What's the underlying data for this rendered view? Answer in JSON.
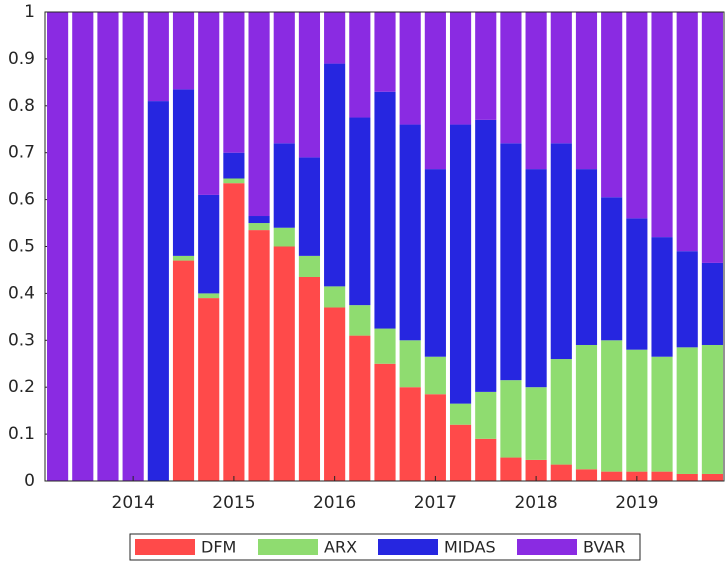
{
  "chart_data": {
    "type": "stacked_bar",
    "categories": [
      null,
      null,
      null,
      "2014",
      null,
      null,
      null,
      "2015",
      null,
      null,
      null,
      "2016",
      null,
      null,
      null,
      "2017",
      null,
      null,
      null,
      "2018",
      null,
      null,
      null,
      "2019",
      null,
      null,
      null
    ],
    "series": [
      {
        "name": "DFM",
        "color": "#ff4a4a",
        "values": [
          0,
          0,
          0,
          0,
          0,
          0.47,
          0.39,
          0.635,
          0.535,
          0.5,
          0.435,
          0.37,
          0.31,
          0.25,
          0.2,
          0.185,
          0.12,
          0.09,
          0.05,
          0.045,
          0.035,
          0.025,
          0.02,
          0.02,
          0.02,
          0.015,
          0.015
        ]
      },
      {
        "name": "ARX",
        "color": "#8fdc70",
        "values": [
          0,
          0,
          0,
          0,
          0,
          0.01,
          0.01,
          0.01,
          0.015,
          0.04,
          0.045,
          0.045,
          0.065,
          0.075,
          0.1,
          0.08,
          0.045,
          0.1,
          0.165,
          0.155,
          0.225,
          0.265,
          0.28,
          0.26,
          0.245,
          0.27,
          0.275
        ]
      },
      {
        "name": "MIDAS",
        "color": "#2626e0",
        "values": [
          0,
          0,
          0,
          0,
          0.81,
          0.355,
          0.21,
          0.055,
          0.015,
          0.18,
          0.21,
          0.475,
          0.4,
          0.505,
          0.46,
          0.4,
          0.595,
          0.58,
          0.505,
          0.465,
          0.46,
          0.375,
          0.305,
          0.28,
          0.255,
          0.205,
          0.175
        ]
      },
      {
        "name": "BVAR",
        "color": "#8a2be2",
        "values": [
          1,
          1,
          1,
          1,
          0.19,
          0.165,
          0.39,
          0.3,
          0.435,
          0.28,
          0.31,
          0.11,
          0.225,
          0.17,
          0.24,
          0.335,
          0.24,
          0.23,
          0.28,
          0.335,
          0.28,
          0.335,
          0.395,
          0.44,
          0.48,
          0.51,
          0.535
        ]
      }
    ],
    "ylim": [
      0,
      1
    ],
    "yticks": [
      0,
      0.1,
      0.2,
      0.3,
      0.4,
      0.5,
      0.6,
      0.7,
      0.8,
      0.9,
      1
    ]
  }
}
